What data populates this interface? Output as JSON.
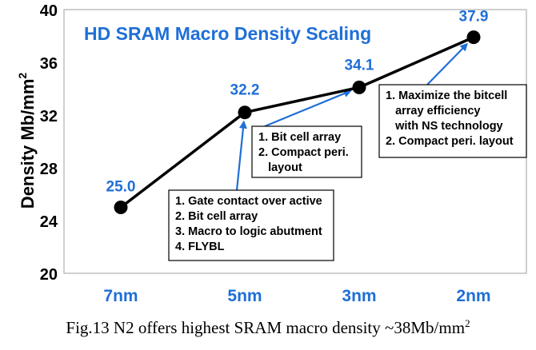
{
  "chart_data": {
    "type": "line",
    "title": "HD SRAM Macro Density Scaling",
    "ylabel": "Density Mb/mm",
    "ylabel_sup": "2",
    "categories": [
      "7nm",
      "5nm",
      "3nm",
      "2nm"
    ],
    "values": [
      25.0,
      32.2,
      34.1,
      37.9
    ],
    "data_labels": [
      "25.0",
      "32.2",
      "34.1",
      "37.9"
    ],
    "ylim": [
      20,
      40
    ],
    "yticks": [
      "20",
      "24",
      "28",
      "32",
      "36",
      "40"
    ],
    "grid": false,
    "annotations": [
      {
        "target_index": 1,
        "lines": [
          "1. Gate contact over active",
          "2. Bit cell array",
          "3. Macro to logic abutment",
          "4. FLYBL"
        ]
      },
      {
        "target_index": 2,
        "lines": [
          "1. Bit cell array",
          "2. Compact peri.",
          "   layout"
        ]
      },
      {
        "target_index": 3,
        "lines": [
          "1. Maximize the bitcell",
          "   array efficiency",
          "   with NS technology",
          "2. Compact peri. layout"
        ]
      }
    ]
  },
  "colors": {
    "accent": "#1f6fd6",
    "line": "#000000"
  },
  "caption": {
    "text": "Fig.13  N2 offers highest SRAM macro density ~38Mb/mm",
    "sup": "2"
  }
}
